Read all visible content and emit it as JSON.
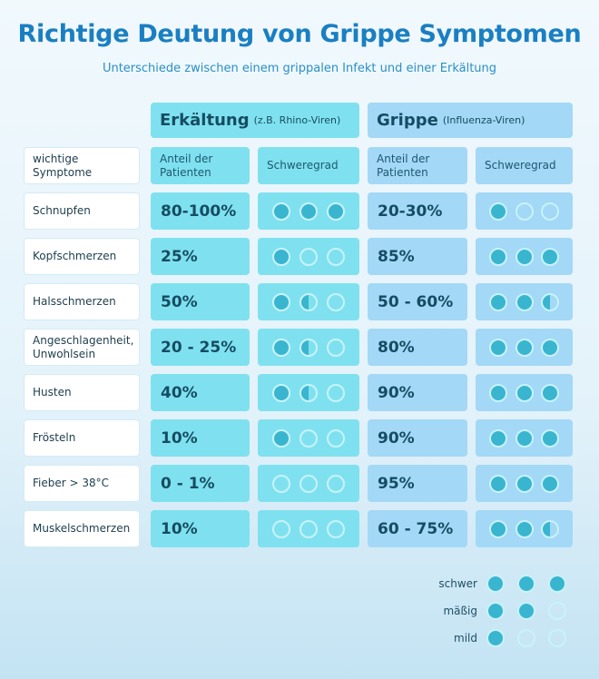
{
  "title": "Richtige Deutung von Grippe Symptomen",
  "subtitle": "Unterschiede zwischen einem grippalen Infekt und einer Erkältung",
  "groups": [
    {
      "name": "Erkältung",
      "note": "(z.B. Rhino-Viren)"
    },
    {
      "name": "Grippe",
      "note": "(Influenza-Viren)"
    }
  ],
  "header": {
    "symptoms": "wichtige Symptome",
    "share": "Anteil der Patienten",
    "severity": "Schweregrad"
  },
  "rows": [
    {
      "symptom": "Schnupfen",
      "cold_share": "80-100%",
      "cold_severity": 3,
      "flu_share": "20-30%",
      "flu_severity": 1
    },
    {
      "symptom": "Kopfschmerzen",
      "cold_share": "25%",
      "cold_severity": 1,
      "flu_share": "85%",
      "flu_severity": 3
    },
    {
      "symptom": "Halsschmerzen",
      "cold_share": "50%",
      "cold_severity": 1.5,
      "flu_share": "50 - 60%",
      "flu_severity": 2.5
    },
    {
      "symptom": "Angeschlagenheit, Unwohlsein",
      "cold_share": "20 - 25%",
      "cold_severity": 1.5,
      "flu_share": "80%",
      "flu_severity": 3
    },
    {
      "symptom": "Husten",
      "cold_share": "40%",
      "cold_severity": 1.5,
      "flu_share": "90%",
      "flu_severity": 3
    },
    {
      "symptom": "Frösteln",
      "cold_share": "10%",
      "cold_severity": 1,
      "flu_share": "90%",
      "flu_severity": 3
    },
    {
      "symptom": "Fieber > 38°C",
      "cold_share": "0 - 1%",
      "cold_severity": 0,
      "flu_share": "95%",
      "flu_severity": 3
    },
    {
      "symptom": "Muskelschmerzen",
      "cold_share": "10%",
      "cold_severity": 0,
      "flu_share": "60 - 75%",
      "flu_severity": 2.5
    }
  ],
  "legend": [
    {
      "label": "schwer",
      "level": 3
    },
    {
      "label": "mäßig",
      "level": 2
    },
    {
      "label": "mild",
      "level": 1
    }
  ],
  "colors": {
    "title": "#1a7fc2",
    "cold": "#7fe1ef",
    "flu": "#a3d8f6",
    "dot": "#39b5cf"
  }
}
